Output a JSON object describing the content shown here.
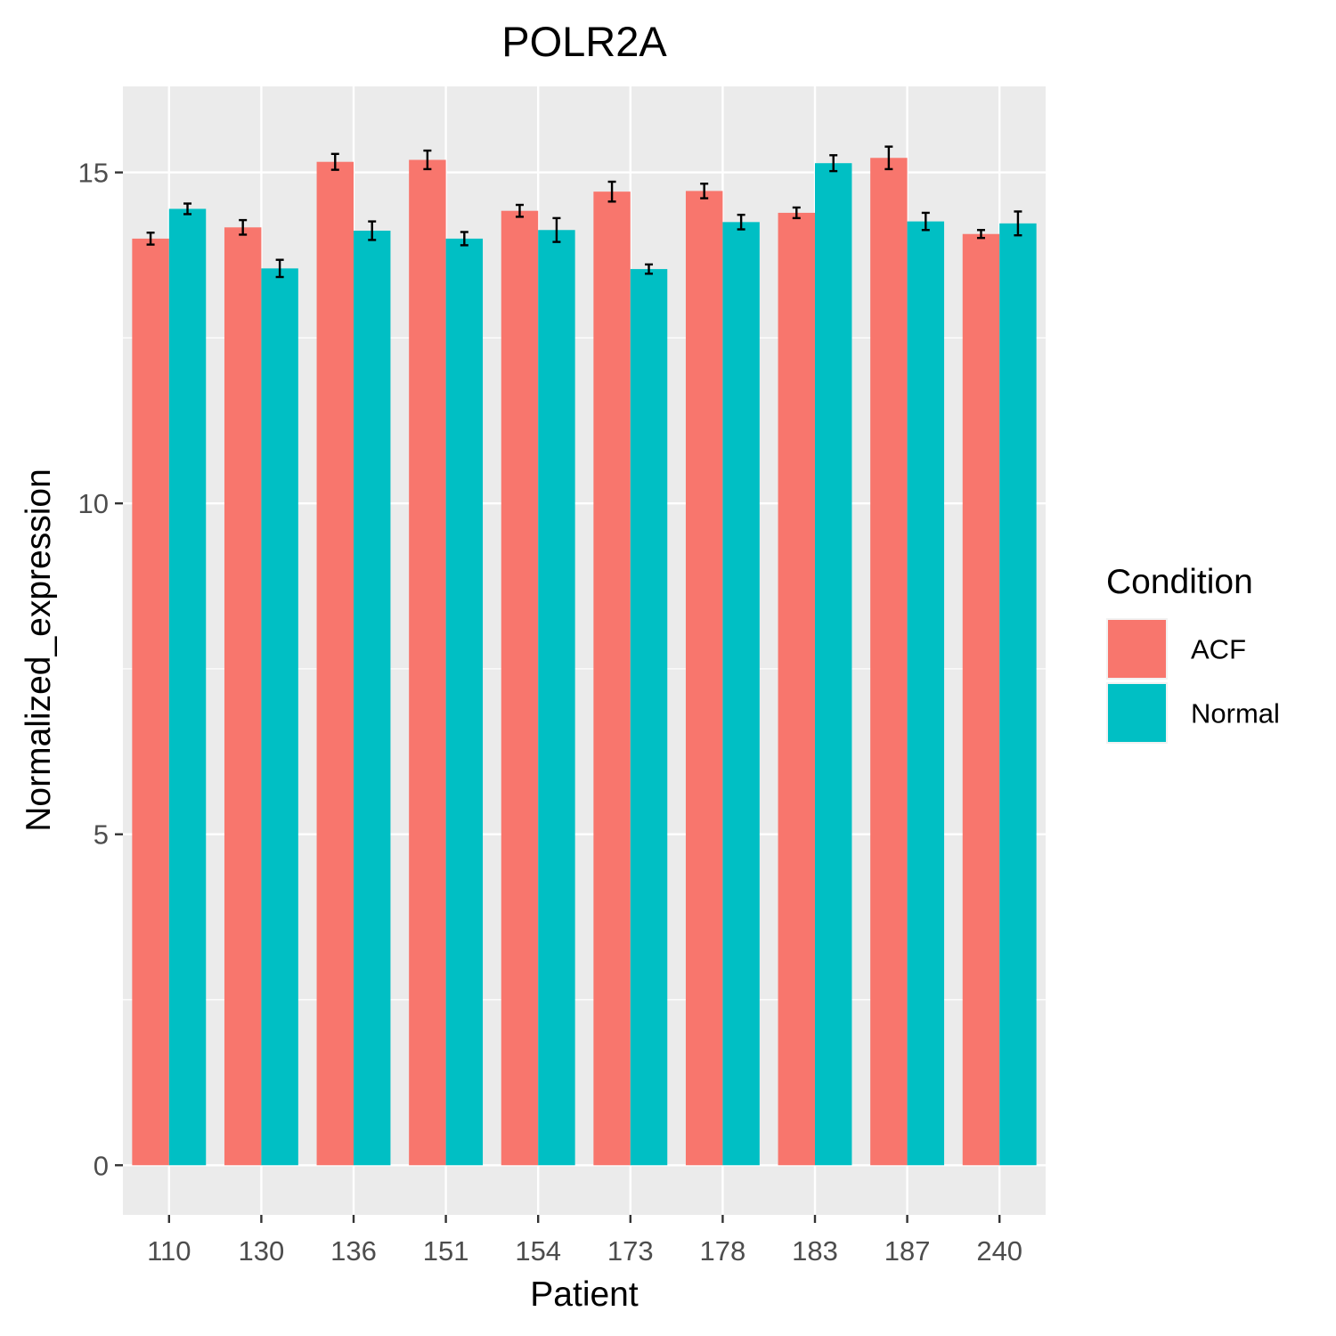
{
  "chart_data": {
    "type": "bar",
    "title": "POLR2A",
    "xlabel": "Patient",
    "ylabel": "Normalized_expression",
    "categories": [
      "110",
      "130",
      "136",
      "151",
      "154",
      "173",
      "178",
      "183",
      "187",
      "240"
    ],
    "ylim": [
      -0.75,
      16.3
    ],
    "yticks": [
      0,
      5,
      10,
      15
    ],
    "grid": true,
    "legend": {
      "title": "Condition",
      "position": "right"
    },
    "series": [
      {
        "name": "ACF",
        "color": "#F8766D",
        "values": [
          14.0,
          14.17,
          15.16,
          15.19,
          14.42,
          14.71,
          14.72,
          14.39,
          15.22,
          14.07
        ],
        "errors": [
          0.09,
          0.11,
          0.12,
          0.14,
          0.09,
          0.15,
          0.11,
          0.08,
          0.17,
          0.06
        ]
      },
      {
        "name": "Normal",
        "color": "#00BFC4",
        "values": [
          14.45,
          13.55,
          14.12,
          14.0,
          14.13,
          13.54,
          14.25,
          15.14,
          14.26,
          14.23
        ],
        "errors": [
          0.08,
          0.13,
          0.14,
          0.1,
          0.18,
          0.07,
          0.11,
          0.12,
          0.13,
          0.18
        ]
      }
    ]
  }
}
